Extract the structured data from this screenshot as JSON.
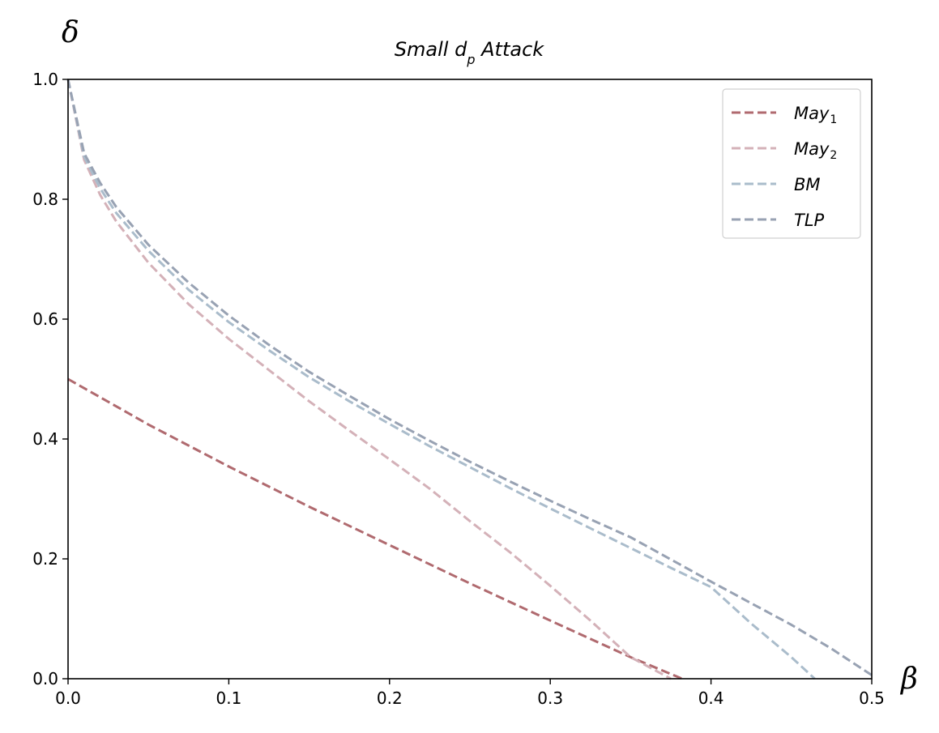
{
  "chart_data": {
    "type": "line",
    "title": "Small d_p Attack",
    "title_main": "Small d",
    "title_sub": "p",
    "title_rest": " Attack",
    "xlabel": "β",
    "ylabel": "δ",
    "xlim": [
      0,
      0.5
    ],
    "ylim": [
      0,
      1.0
    ],
    "x_ticks": [
      "0.0",
      "0.1",
      "0.2",
      "0.3",
      "0.4",
      "0.5"
    ],
    "y_ticks": [
      "0.0",
      "0.2",
      "0.4",
      "0.6",
      "0.8",
      "1.0"
    ],
    "grid": false,
    "legend_position": "top-right",
    "series": [
      {
        "name": "May_1",
        "label_main": "May",
        "label_sub": "1",
        "color": "#b06a6f",
        "style": "dashed",
        "x": [
          0,
          0.05,
          0.1,
          0.15,
          0.2,
          0.25,
          0.3,
          0.35,
          0.382
        ],
        "y": [
          0.5,
          0.424,
          0.354,
          0.287,
          0.223,
          0.159,
          0.097,
          0.036,
          0.0
        ]
      },
      {
        "name": "May_2",
        "label_main": "May",
        "label_sub": "2",
        "color": "#d4b1b8",
        "style": "dashed",
        "x": [
          0,
          0.01,
          0.02,
          0.03,
          0.05,
          0.075,
          0.1,
          0.125,
          0.15,
          0.175,
          0.2,
          0.225,
          0.25,
          0.275,
          0.3,
          0.325,
          0.35,
          0.375
        ],
        "y": [
          1.0,
          0.866,
          0.807,
          0.763,
          0.694,
          0.625,
          0.567,
          0.515,
          0.463,
          0.414,
          0.366,
          0.317,
          0.263,
          0.211,
          0.155,
          0.097,
          0.036,
          0.0
        ]
      },
      {
        "name": "BM",
        "label_main": "BM",
        "label_sub": "",
        "color": "#aabccb",
        "style": "dashed",
        "x": [
          0,
          0.01,
          0.02,
          0.03,
          0.05,
          0.075,
          0.1,
          0.125,
          0.15,
          0.175,
          0.2,
          0.225,
          0.25,
          0.275,
          0.3,
          0.325,
          0.35,
          0.375,
          0.4,
          0.425,
          0.45,
          0.4645
        ],
        "y": [
          1.0,
          0.871,
          0.818,
          0.777,
          0.714,
          0.649,
          0.595,
          0.548,
          0.503,
          0.463,
          0.425,
          0.388,
          0.353,
          0.318,
          0.284,
          0.251,
          0.218,
          0.185,
          0.153,
          0.092,
          0.036,
          0.0
        ]
      },
      {
        "name": "TLP",
        "label_main": "TLP",
        "label_sub": "",
        "color": "#98a2b3",
        "style": "dashed",
        "x": [
          0,
          0.01,
          0.02,
          0.03,
          0.05,
          0.075,
          0.1,
          0.125,
          0.15,
          0.175,
          0.2,
          0.225,
          0.25,
          0.275,
          0.3,
          0.325,
          0.35,
          0.375,
          0.4,
          0.425,
          0.45,
          0.475,
          0.5
        ],
        "y": [
          1.0,
          0.877,
          0.827,
          0.787,
          0.724,
          0.661,
          0.606,
          0.557,
          0.512,
          0.472,
          0.433,
          0.397,
          0.362,
          0.329,
          0.297,
          0.266,
          0.236,
          0.199,
          0.162,
          0.126,
          0.09,
          0.05,
          0.006
        ]
      }
    ]
  }
}
